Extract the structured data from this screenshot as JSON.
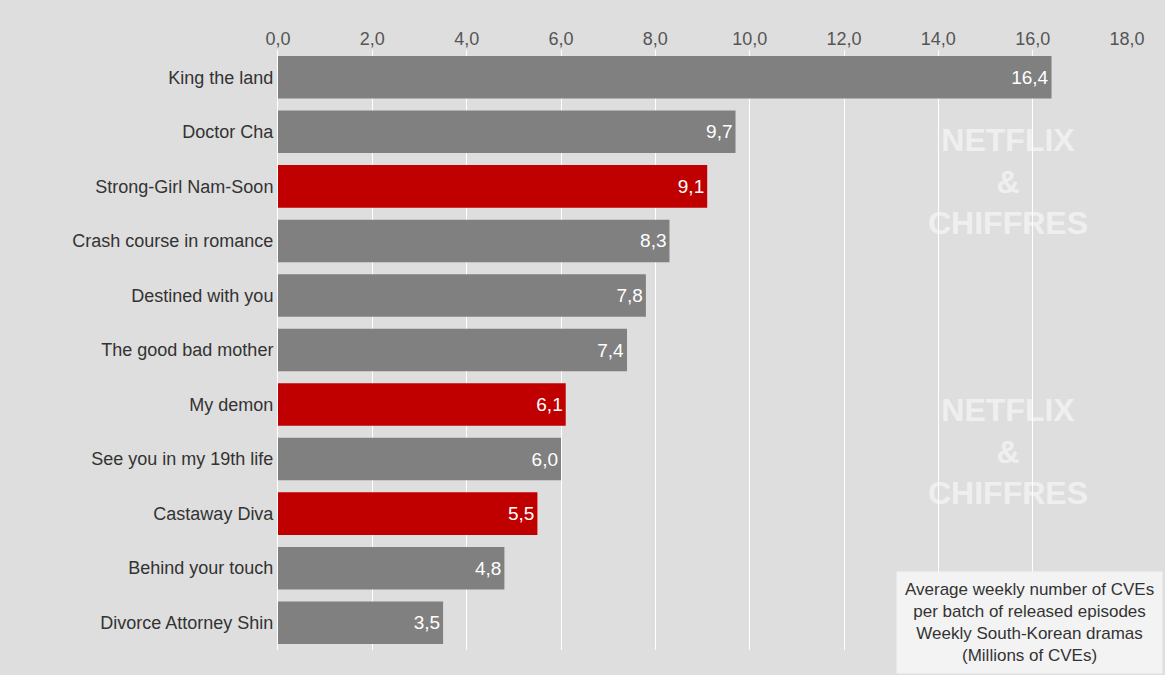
{
  "chart_data": {
    "type": "bar",
    "orientation": "horizontal",
    "categories": [
      "King the land",
      "Doctor Cha",
      "Strong-Girl Nam-Soon",
      "Crash course in romance",
      "Destined with you",
      "The good bad mother",
      "My demon",
      "See you in my 19th life",
      "Castaway Diva",
      "Behind your touch",
      "Divorce Attorney Shin"
    ],
    "values": [
      16.4,
      9.7,
      9.1,
      8.3,
      7.8,
      7.4,
      6.1,
      6.0,
      5.5,
      4.8,
      3.5
    ],
    "value_labels": [
      "16,4",
      "9,7",
      "9,1",
      "8,3",
      "7,8",
      "7,4",
      "6,1",
      "6,0",
      "5,5",
      "4,8",
      "3,5"
    ],
    "colors": [
      "#808080",
      "#808080",
      "#c00000",
      "#808080",
      "#808080",
      "#808080",
      "#c00000",
      "#808080",
      "#c00000",
      "#808080",
      "#808080"
    ],
    "xlim": [
      0,
      18
    ],
    "xticks": [
      {
        "value": 0,
        "label": "0,0"
      },
      {
        "value": 2,
        "label": "2,0"
      },
      {
        "value": 4,
        "label": "4,0"
      },
      {
        "value": 6,
        "label": "6,0"
      },
      {
        "value": 8,
        "label": "8,0"
      },
      {
        "value": 10,
        "label": "10,0"
      },
      {
        "value": 12,
        "label": "12,0"
      },
      {
        "value": 14,
        "label": "14,0"
      },
      {
        "value": 16,
        "label": "16,0"
      },
      {
        "value": 18,
        "label": "18,0"
      }
    ],
    "grid": true,
    "data_labels": true,
    "annotations": [
      "Average weekly number of CVEs\nper batch of released episodes\nWeekly South-Korean dramas\n(Millions of CVEs)",
      "NETFLIX\n&\nCHIFFRES"
    ]
  }
}
